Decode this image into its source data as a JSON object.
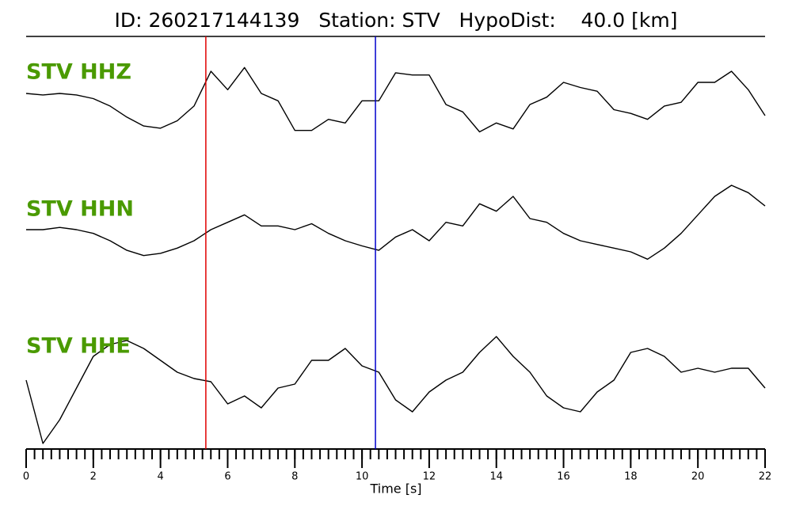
{
  "chart_data": {
    "type": "line",
    "title": "ID: 260217144139   Station: STV   HypoDist:    40.0 [km]",
    "x_label": "Time [s]",
    "xlim": [
      0,
      22
    ],
    "xticks": [
      0,
      2,
      4,
      6,
      8,
      10,
      12,
      14,
      16,
      18,
      20,
      22
    ],
    "xminorticks": [
      0,
      0.25,
      0.5,
      0.75,
      1,
      1.25,
      1.5,
      1.75,
      2,
      2.25,
      2.5,
      2.75,
      3,
      3.25,
      3.5,
      3.75,
      4,
      4.25,
      4.5,
      4.75,
      5,
      5.25,
      5.5,
      5.75,
      6,
      6.25,
      6.5,
      6.75,
      7,
      7.25,
      7.5,
      7.75,
      8,
      8.25,
      8.5,
      8.75,
      9,
      9.25,
      9.5,
      9.75,
      10,
      10.25,
      10.5,
      10.75,
      11,
      11.25,
      11.5,
      11.75,
      12,
      12.25,
      12.5,
      12.75,
      13,
      13.25,
      13.5,
      13.75,
      14,
      14.25,
      14.5,
      14.75,
      15,
      15.25,
      15.5,
      15.75,
      16,
      16.25,
      16.5,
      16.75,
      17,
      17.25,
      17.5,
      17.75,
      18,
      18.25,
      18.5,
      18.75,
      19,
      19.25,
      19.5,
      19.75,
      20,
      20.25,
      20.5,
      20.75,
      21,
      21.25,
      21.5,
      21.75,
      22
    ],
    "x": [
      0,
      0.5,
      1,
      1.5,
      2,
      2.5,
      3,
      3.5,
      4,
      4.5,
      5,
      5.5,
      6,
      6.5,
      7,
      7.5,
      8,
      8.5,
      9,
      9.5,
      10,
      10.5,
      11,
      11.5,
      12,
      12.5,
      13,
      13.5,
      14,
      14.5,
      15,
      15.5,
      16,
      16.5,
      17,
      17.5,
      18,
      18.5,
      19,
      19.5,
      20,
      20.5,
      21,
      21.5,
      22
    ],
    "ylim": [
      -75,
      75
    ],
    "label_color": "#4a9a00",
    "series": [
      {
        "name": "STV HHZ",
        "color": "#000000",
        "values": [
          0,
          -2,
          0,
          -2,
          -7,
          -17,
          -32,
          -44,
          -47,
          -37,
          -17,
          30,
          5,
          35,
          0,
          -10,
          -50,
          -50,
          -35,
          -40,
          -10,
          -10,
          28,
          25,
          25,
          -15,
          -25,
          -52,
          -40,
          -48,
          -15,
          -5,
          15,
          8,
          3,
          -22,
          -27,
          -35,
          -17,
          -12,
          15,
          15,
          30,
          5,
          -30
        ]
      },
      {
        "name": "STV HHN",
        "color": "#000000",
        "values": [
          0,
          0,
          3,
          0,
          -5,
          -15,
          -28,
          -35,
          -32,
          -25,
          -15,
          0,
          10,
          20,
          5,
          5,
          0,
          8,
          -5,
          -15,
          -22,
          -28,
          -10,
          0,
          -15,
          10,
          5,
          35,
          25,
          45,
          15,
          10,
          -5,
          -15,
          -20,
          -25,
          -30,
          -40,
          -25,
          -5,
          20,
          45,
          60,
          50,
          32
        ]
      },
      {
        "name": "STV HHE",
        "color": "#000000",
        "values": [
          0,
          -80,
          -50,
          -10,
          30,
          45,
          50,
          40,
          25,
          10,
          2,
          -2,
          -30,
          -20,
          -35,
          -10,
          -5,
          25,
          25,
          40,
          18,
          10,
          -25,
          -40,
          -15,
          0,
          10,
          35,
          55,
          30,
          10,
          -20,
          -35,
          -40,
          -15,
          0,
          35,
          40,
          30,
          10,
          15,
          10,
          15,
          15,
          -10
        ]
      }
    ],
    "picks": [
      {
        "value": 5.35,
        "color": "#e00000"
      },
      {
        "value": 10.4,
        "color": "#0000cc"
      }
    ]
  }
}
